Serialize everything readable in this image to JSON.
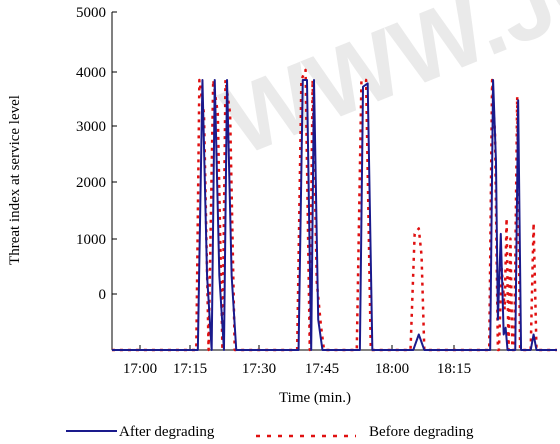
{
  "chart_data": {
    "type": "line",
    "title": "",
    "xlabel": "Time (min.)",
    "ylabel": "Threat index at service level",
    "x_ticks": [
      "17:00",
      "17:15",
      "17:30",
      "17:45",
      "18:00",
      "18:15"
    ],
    "y_ticks": [
      "0",
      "1000",
      "2000",
      "3000",
      "4000",
      "5000"
    ],
    "xlim": [
      -20,
      332
    ],
    "ylim": [
      0,
      5000
    ],
    "y_scale_note": "tick labels are printed offset from the gridline positions in the source figure",
    "grid": false,
    "legend": "bottom",
    "series": [
      {
        "name": "After degrading",
        "color": "#1a1a8c",
        "style": "solid",
        "points": [
          [
            -20,
            0
          ],
          [
            48,
            0
          ],
          [
            50,
            0
          ],
          [
            53,
            4000
          ],
          [
            56,
            1100
          ],
          [
            59,
            0
          ],
          [
            61,
            4000
          ],
          [
            64,
            1100
          ],
          [
            67,
            0
          ],
          [
            69,
            4000
          ],
          [
            72,
            1100
          ],
          [
            75,
            0
          ],
          [
            118,
            0
          ],
          [
            121,
            4000
          ],
          [
            124,
            4000
          ],
          [
            127,
            0
          ],
          [
            129,
            4000
          ],
          [
            132,
            450
          ],
          [
            135,
            0
          ],
          [
            159,
            0
          ],
          [
            161,
            3900
          ],
          [
            164,
            3950
          ],
          [
            167,
            0
          ],
          [
            195,
            0
          ],
          [
            199,
            230
          ],
          [
            203,
            0
          ],
          [
            262,
            0
          ],
          [
            265,
            4000
          ],
          [
            268,
            2800
          ],
          [
            270,
            450
          ],
          [
            273,
            1720
          ],
          [
            276,
            230
          ],
          [
            278,
            330
          ],
          [
            280,
            0
          ],
          [
            288,
            0
          ],
          [
            291,
            3700
          ],
          [
            294,
            0
          ],
          [
            304,
            0
          ],
          [
            307,
            230
          ],
          [
            310,
            0
          ],
          [
            332,
            0
          ]
        ]
      },
      {
        "name": "Before degrading",
        "color": "#e01010",
        "style": "dotted",
        "points": [
          [
            -20,
            0
          ],
          [
            49,
            0
          ],
          [
            51,
            4000
          ],
          [
            54,
            3500
          ],
          [
            57,
            0
          ],
          [
            60,
            4000
          ],
          [
            63,
            3500
          ],
          [
            66,
            0
          ],
          [
            68,
            4000
          ],
          [
            71,
            3500
          ],
          [
            74,
            0
          ],
          [
            117,
            0
          ],
          [
            120,
            4000
          ],
          [
            123,
            4150
          ],
          [
            126,
            0
          ],
          [
            128,
            4000
          ],
          [
            131,
            1000
          ],
          [
            134,
            350
          ],
          [
            136,
            0
          ],
          [
            157,
            0
          ],
          [
            160,
            4000
          ],
          [
            163,
            4000
          ],
          [
            166,
            0
          ],
          [
            193,
            0
          ],
          [
            196,
            1720
          ],
          [
            199,
            1800
          ],
          [
            201,
            1400
          ],
          [
            203,
            0
          ],
          [
            261,
            0
          ],
          [
            264,
            4000
          ],
          [
            267,
            3200
          ],
          [
            270,
            0
          ],
          [
            271,
            0
          ],
          [
            274,
            1200
          ],
          [
            277,
            600
          ],
          [
            279,
            1950
          ],
          [
            281,
            0
          ],
          [
            283,
            1650
          ],
          [
            285,
            0
          ],
          [
            287,
            0
          ],
          [
            290,
            3750
          ],
          [
            293,
            0
          ],
          [
            304,
            0
          ],
          [
            307,
            1880
          ],
          [
            310,
            0
          ],
          [
            332,
            0
          ]
        ]
      }
    ]
  }
}
